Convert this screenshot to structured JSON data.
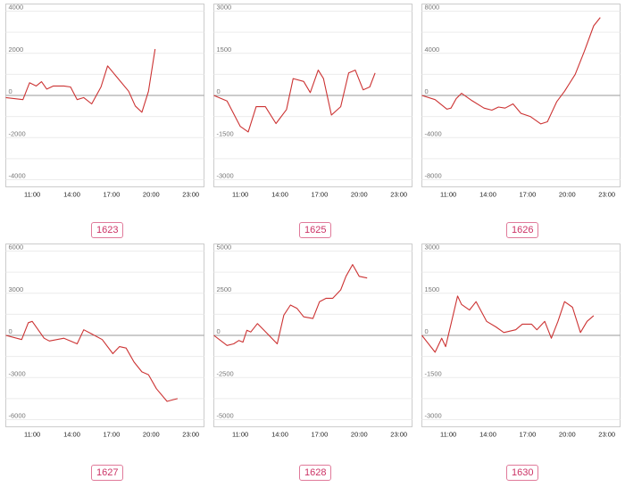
{
  "chart_data": [
    {
      "type": "line",
      "code": "1623",
      "yticks": [
        "4000",
        "2000",
        "0",
        "-2000",
        "-4000"
      ],
      "ylim": [
        -4000,
        4000
      ],
      "xticks": [
        "11:00",
        "14:00",
        "17:00",
        "20:00",
        "23:00"
      ],
      "xlim": [
        9.0,
        24.0
      ],
      "color": "#cc3333",
      "series": [
        {
          "x": [
            9.0,
            10.3,
            10.8,
            11.3,
            11.7,
            12.1,
            12.6,
            13.4,
            13.9,
            14.4,
            14.9,
            15.5,
            16.2,
            16.7,
            17.5,
            18.3,
            18.8,
            19.3,
            19.8,
            20.3
          ],
          "y": [
            -100,
            -200,
            600,
            450,
            650,
            300,
            450,
            450,
            400,
            -200,
            -100,
            -400,
            400,
            1400,
            800,
            200,
            -500,
            -800,
            200,
            2200
          ]
        }
      ]
    },
    {
      "type": "line",
      "code": "1625",
      "yticks": [
        "3000",
        "1500",
        "0",
        "-1500",
        "-3000"
      ],
      "ylim": [
        -3000,
        3000
      ],
      "xticks": [
        "11:00",
        "14:00",
        "17:00",
        "20:00",
        "23:00"
      ],
      "xlim": [
        9.0,
        24.0
      ],
      "color": "#cc3333",
      "series": [
        {
          "x": [
            9.0,
            10.0,
            11.0,
            11.6,
            12.2,
            12.9,
            13.7,
            14.5,
            15.0,
            15.8,
            16.3,
            16.9,
            17.3,
            17.9,
            18.6,
            19.2,
            19.7,
            20.3,
            20.8,
            21.2
          ],
          "y": [
            0,
            -200,
            -1100,
            -1300,
            -400,
            -400,
            -1000,
            -500,
            600,
            500,
            100,
            900,
            600,
            -700,
            -400,
            800,
            900,
            200,
            300,
            800
          ]
        }
      ]
    },
    {
      "type": "line",
      "code": "1626",
      "yticks": [
        "8000",
        "4000",
        "0",
        "-4000",
        "-8000"
      ],
      "ylim": [
        -8000,
        8000
      ],
      "xticks": [
        "11:00",
        "14:00",
        "17:00",
        "20:00",
        "23:00"
      ],
      "xlim": [
        9.0,
        24.0
      ],
      "color": "#cc3333",
      "series": [
        {
          "x": [
            9.0,
            10.0,
            10.9,
            11.2,
            11.6,
            12.0,
            12.8,
            13.7,
            14.3,
            14.8,
            15.3,
            15.9,
            16.5,
            17.2,
            18.0,
            18.5,
            19.2,
            19.8,
            20.6,
            21.3,
            22.0,
            22.5
          ],
          "y": [
            0,
            -400,
            -1300,
            -1200,
            -300,
            200,
            -500,
            -1200,
            -1400,
            -1100,
            -1200,
            -800,
            -1700,
            -2000,
            -2700,
            -2500,
            -600,
            400,
            2000,
            4200,
            6600,
            7400
          ]
        }
      ]
    },
    {
      "type": "line",
      "code": "1627",
      "yticks": [
        "6000",
        "3000",
        "0",
        "-3000",
        "-6000"
      ],
      "ylim": [
        -6000,
        6000
      ],
      "xticks": [
        "11:00",
        "14:00",
        "17:00",
        "20:00",
        "23:00"
      ],
      "xlim": [
        9.0,
        24.0
      ],
      "color": "#cc3333",
      "series": [
        {
          "x": [
            9.0,
            10.2,
            10.7,
            11.0,
            11.9,
            12.3,
            13.4,
            14.4,
            14.9,
            15.5,
            16.3,
            17.1,
            17.6,
            18.1,
            18.7,
            19.3,
            19.8,
            20.4,
            21.2,
            21.6,
            22.0
          ],
          "y": [
            0,
            -300,
            900,
            1000,
            -200,
            -400,
            -200,
            -600,
            400,
            100,
            -300,
            -1300,
            -800,
            -900,
            -1900,
            -2600,
            -2800,
            -3800,
            -4700,
            -4600,
            -4500
          ]
        }
      ]
    },
    {
      "type": "line",
      "code": "1628",
      "yticks": [
        "5000",
        "2500",
        "0",
        "-2500",
        "-5000"
      ],
      "ylim": [
        -5000,
        5000
      ],
      "xticks": [
        "11:00",
        "14:00",
        "17:00",
        "20:00",
        "23:00"
      ],
      "xlim": [
        9.0,
        24.0
      ],
      "color": "#cc3333",
      "series": [
        {
          "x": [
            9.0,
            10.0,
            10.5,
            10.9,
            11.2,
            11.5,
            11.8,
            12.3,
            12.8,
            13.8,
            14.3,
            14.8,
            15.3,
            15.8,
            16.5,
            17.0,
            17.5,
            18.0,
            18.6,
            19.0,
            19.5,
            20.0,
            20.6
          ],
          "y": [
            0,
            -600,
            -500,
            -300,
            -400,
            300,
            200,
            700,
            300,
            -500,
            1200,
            1800,
            1600,
            1100,
            1000,
            2000,
            2200,
            2200,
            2700,
            3500,
            4200,
            3500,
            3400
          ]
        }
      ]
    },
    {
      "type": "line",
      "code": "1630",
      "yticks": [
        "3000",
        "1500",
        "0",
        "-1500",
        "-3000"
      ],
      "ylim": [
        -3000,
        3000
      ],
      "xticks": [
        "11:00",
        "14:00",
        "17:00",
        "20:00",
        "23:00"
      ],
      "xlim": [
        9.0,
        24.0
      ],
      "color": "#cc3333",
      "series": [
        {
          "x": [
            9.0,
            10.0,
            10.5,
            10.8,
            11.2,
            11.7,
            12.0,
            12.6,
            13.1,
            13.9,
            14.6,
            15.2,
            16.1,
            16.6,
            17.3,
            17.7,
            18.3,
            18.8,
            19.3,
            19.8,
            20.4,
            21.0,
            21.5,
            22.0
          ],
          "y": [
            0,
            -600,
            -100,
            -400,
            400,
            1400,
            1100,
            900,
            1200,
            500,
            300,
            100,
            200,
            400,
            400,
            200,
            500,
            -100,
            500,
            1200,
            1000,
            100,
            500,
            700
          ]
        }
      ]
    }
  ]
}
